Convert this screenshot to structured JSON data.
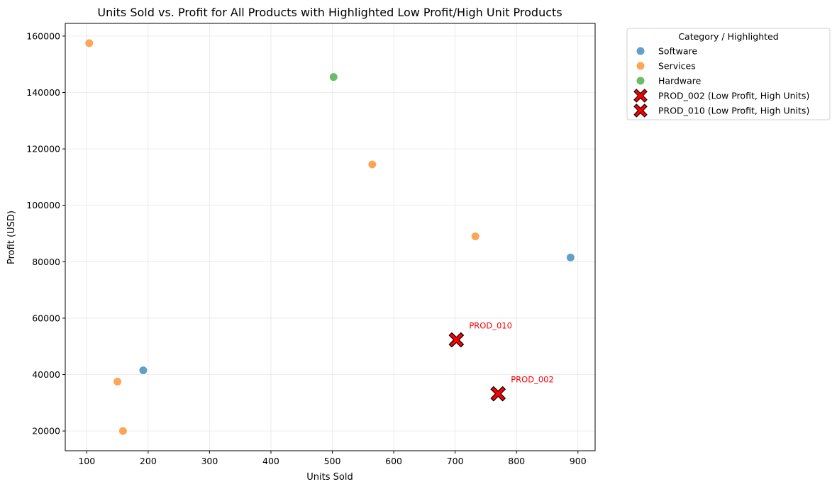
{
  "chart_data": {
    "type": "scatter",
    "title": "Units Sold vs. Profit for All Products with Highlighted Low Profit/High Unit Products",
    "xlabel": "Units Sold",
    "ylabel": "Profit (USD)",
    "xlim": [
      65,
      928
    ],
    "ylim": [
      13000,
      164500
    ],
    "xticks": [
      100,
      200,
      300,
      400,
      500,
      600,
      700,
      800,
      900
    ],
    "yticks": [
      20000,
      40000,
      60000,
      80000,
      100000,
      120000,
      140000,
      160000
    ],
    "grid": true,
    "legend": {
      "title": "Category / Highlighted",
      "placement": "outside-top-right"
    },
    "series": [
      {
        "name": "Software",
        "color": "#1f77b4",
        "marker": "circle",
        "points": [
          {
            "x": 192,
            "y": 41500
          },
          {
            "x": 888,
            "y": 81500
          }
        ]
      },
      {
        "name": "Services",
        "color": "#ff7f0e",
        "marker": "circle",
        "points": [
          {
            "x": 104,
            "y": 157500
          },
          {
            "x": 565,
            "y": 114500
          },
          {
            "x": 733,
            "y": 89000
          },
          {
            "x": 150,
            "y": 37500
          },
          {
            "x": 159,
            "y": 20000
          }
        ]
      },
      {
        "name": "Hardware",
        "color": "#2ca02c",
        "marker": "circle",
        "points": [
          {
            "x": 502,
            "y": 145500
          }
        ]
      },
      {
        "name": "PROD_002 (Low Profit, High Units)",
        "color": "#ff0000",
        "marker": "x",
        "annotation": "PROD_002",
        "points": [
          {
            "x": 770,
            "y": 33200
          }
        ]
      },
      {
        "name": "PROD_010 (Low Profit, High Units)",
        "color": "#ff0000",
        "marker": "x",
        "annotation": "PROD_010",
        "points": [
          {
            "x": 702,
            "y": 52300
          }
        ]
      }
    ]
  }
}
